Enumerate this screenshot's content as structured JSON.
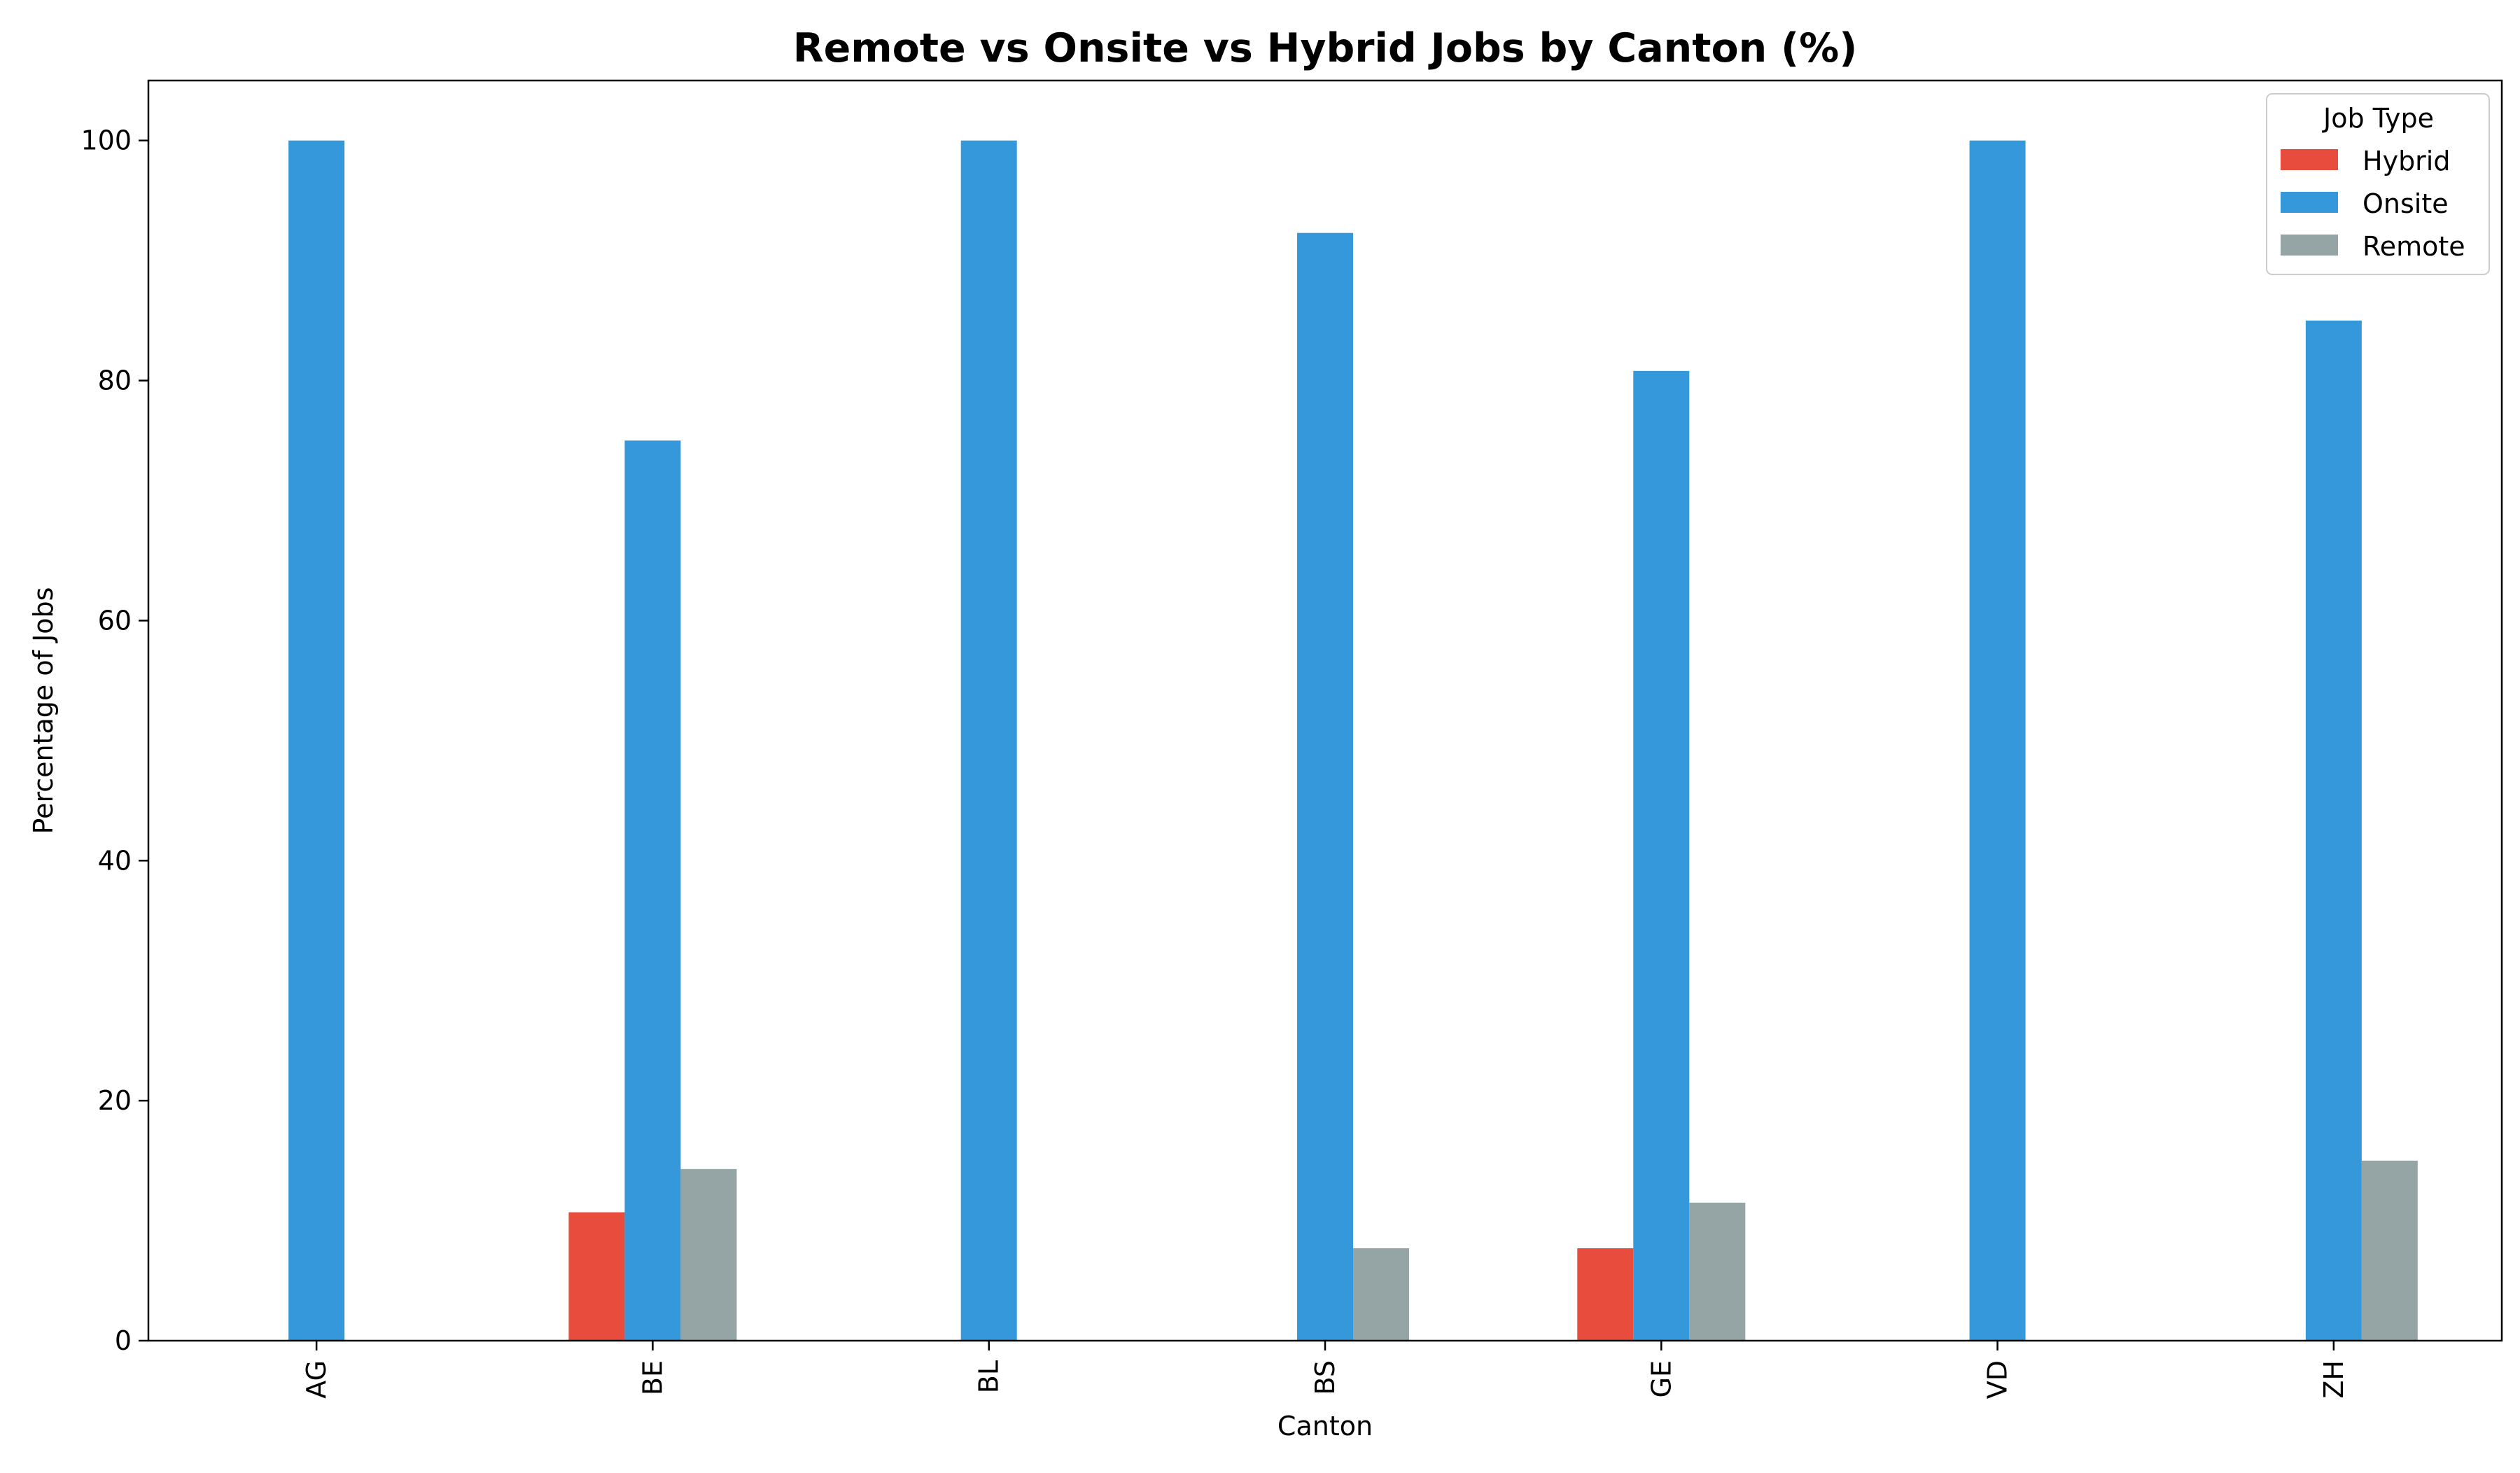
{
  "chart_data": {
    "type": "bar",
    "title": "Remote vs Onsite vs Hybrid Jobs by Canton (%)",
    "xlabel": "Canton",
    "ylabel": "Percentage of Jobs",
    "categories": [
      "AG",
      "BE",
      "BL",
      "BS",
      "GE",
      "VD",
      "ZH"
    ],
    "ylim": [
      0,
      105
    ],
    "yticks": [
      0,
      20,
      40,
      60,
      80,
      100
    ],
    "grid": false,
    "legend": {
      "title": "Job Type",
      "placement": "top-right"
    },
    "series": [
      {
        "name": "Hybrid",
        "color": "#e74c3c",
        "values": [
          0,
          10.7,
          0,
          0,
          7.7,
          0,
          0
        ]
      },
      {
        "name": "Onsite",
        "color": "#3498db",
        "values": [
          100,
          75.0,
          100,
          92.3,
          80.8,
          100,
          85.0
        ]
      },
      {
        "name": "Remote",
        "color": "#95a5a6",
        "values": [
          0,
          14.3,
          0,
          7.7,
          11.5,
          0,
          15.0
        ]
      }
    ]
  }
}
